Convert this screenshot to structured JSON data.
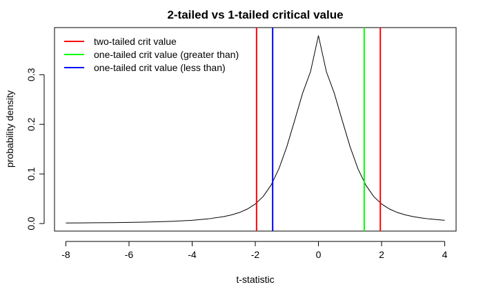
{
  "chart_data": {
    "type": "line",
    "title": "2-tailed vs 1-tailed critical value",
    "xlabel": "t-statistic",
    "ylabel": "probability density",
    "xlim": [
      -8.36,
      4.36
    ],
    "ylim": [
      -0.0152,
      0.395
    ],
    "x_ticks": [
      -8,
      -6,
      -4,
      -2,
      0,
      2,
      4
    ],
    "y_ticks": [
      0.0,
      0.1,
      0.2,
      0.3
    ],
    "x_tick_labels": [
      "-8",
      "-6",
      "-4",
      "-2",
      "0",
      "2",
      "4"
    ],
    "y_tick_labels": [
      "0.0",
      "0.1",
      "0.2",
      "0.3"
    ],
    "grid": false,
    "legend_position": "top-left",
    "series": [
      {
        "color": "#000000",
        "x": [
          -8.0,
          -7.5,
          -7.0,
          -6.5,
          -6.0,
          -5.5,
          -5.0,
          -4.5,
          -4.0,
          -3.5,
          -3.0,
          -2.75,
          -2.5,
          -2.25,
          -2.0,
          -1.75,
          -1.5,
          -1.25,
          -1.0,
          -0.75,
          -0.5,
          -0.25,
          0.0,
          0.25,
          0.5,
          0.75,
          1.0,
          1.25,
          1.5,
          1.75,
          2.0,
          2.25,
          2.5,
          2.75,
          3.0,
          3.25,
          3.5,
          3.75,
          4.0
        ],
        "y": [
          0.0011,
          0.0013,
          0.0016,
          0.0019,
          0.0023,
          0.0029,
          0.0037,
          0.0049,
          0.0066,
          0.0094,
          0.014,
          0.0175,
          0.0223,
          0.0293,
          0.0394,
          0.0546,
          0.0775,
          0.1107,
          0.1552,
          0.2086,
          0.263,
          0.3063,
          0.3789,
          0.3063,
          0.263,
          0.2086,
          0.1552,
          0.1107,
          0.0775,
          0.0546,
          0.0394,
          0.0293,
          0.0223,
          0.0175,
          0.014,
          0.0114,
          0.0094,
          0.0079,
          0.0066
        ]
      }
    ],
    "vertical_lines": [
      {
        "label": "two-tailed crit value",
        "color": "#ff0000",
        "x": [
          -1.96,
          1.96
        ]
      },
      {
        "label": "one-tailed crit value (greater than)",
        "color": "#00ff00",
        "x": [
          1.45
        ]
      },
      {
        "label": "one-tailed crit value (less than)",
        "color": "#0000ff",
        "x": [
          -1.45
        ]
      }
    ]
  }
}
